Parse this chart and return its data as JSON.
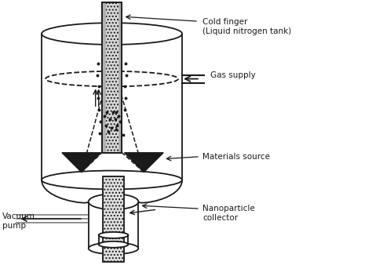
{
  "figsize": [
    4.74,
    3.38
  ],
  "dpi": 100,
  "bg_color": "#ffffff",
  "labels": {
    "cold_finger": "Cold finger\n(Liquid nitrogen tank)",
    "gas_supply": "Gas supply",
    "materials_source": "Materials source",
    "nanoparticle_collector": "Nanoparticle\ncollector",
    "vacuum_pump": "Vacuum\npump"
  },
  "font_size": 7.5
}
